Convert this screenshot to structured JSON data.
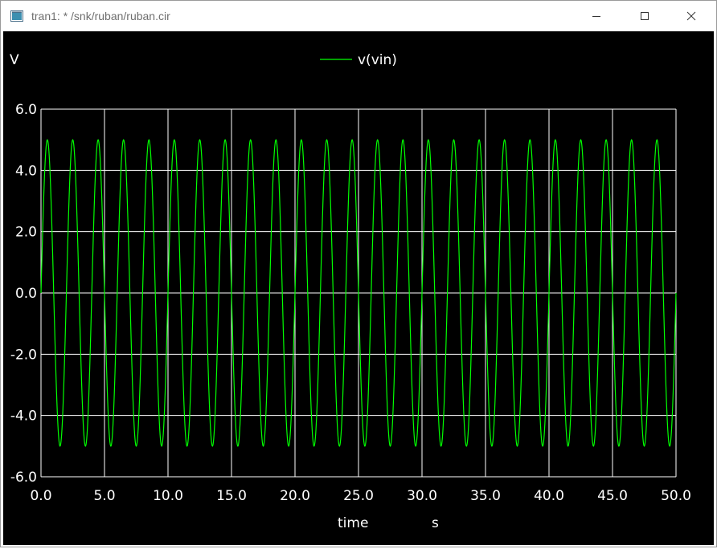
{
  "window": {
    "title": "tran1: * /snk/ruban/ruban.cir",
    "icons": [
      "app-icon",
      "minimize-icon",
      "maximize-icon",
      "close-icon"
    ]
  },
  "colors": {
    "background": "#000000",
    "grid": "#ffffff",
    "trace": "#00ff00",
    "text": "#ffffff"
  },
  "chart_data": {
    "type": "line",
    "ylabel": "V",
    "xlabel": "time",
    "xunit": "s",
    "xlim": [
      0,
      50
    ],
    "ylim": [
      -6,
      6
    ],
    "xticks": [
      "0.0",
      "5.0",
      "10.0",
      "15.0",
      "20.0",
      "25.0",
      "30.0",
      "35.0",
      "40.0",
      "45.0",
      "50.0"
    ],
    "yticks": [
      "6.0",
      "4.0",
      "2.0",
      "0.0",
      "-2.0",
      "-4.0",
      "-6.0"
    ],
    "grid": true,
    "legend_position": "top-center",
    "series": [
      {
        "name": "v(vin)",
        "color": "#00ff00",
        "waveform": "sine",
        "amplitude": 5,
        "offset": 0,
        "period": 2,
        "phase_deg": 0,
        "x_start": 0,
        "x_end": 50
      }
    ]
  }
}
